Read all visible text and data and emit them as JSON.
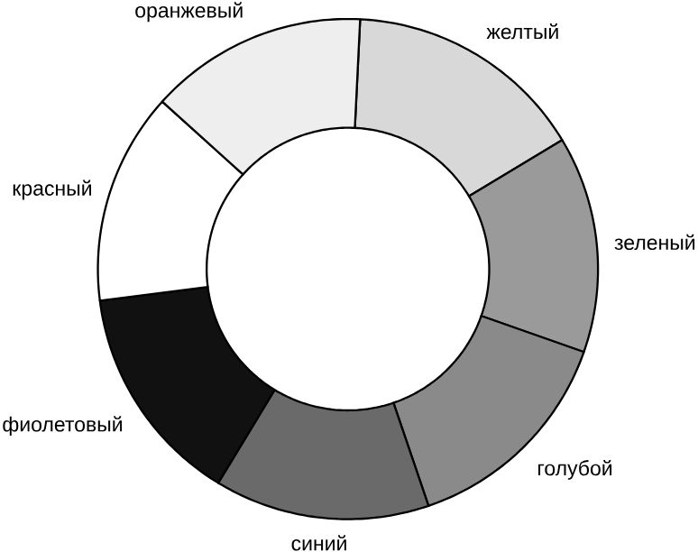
{
  "chart_data": {
    "type": "donut",
    "categories": [
      "желтый",
      "зеленый",
      "голубой",
      "синий",
      "фиолетовый",
      "красный",
      "оранжевый"
    ],
    "values": [
      15.6,
      14.0,
      14.4,
      13.9,
      14.3,
      13.7,
      14.1
    ],
    "colors": [
      "#d8d8d8",
      "#9a9a9a",
      "#8a8a8a",
      "#6a6a6a",
      "#111111",
      "#ffffff",
      "#eeeeee"
    ]
  }
}
